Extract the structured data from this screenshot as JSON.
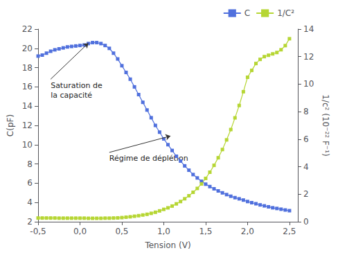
{
  "chart_data": {
    "type": "line",
    "xlabel": "Tension (V)",
    "ylabel": "C(pF)",
    "y2label": "1/c² (10⁻²² F⁻¹)",
    "xlim": [
      -0.5,
      2.6
    ],
    "xticks": [
      {
        "value": -0.5,
        "label": "-0,5"
      },
      {
        "value": 0.0,
        "label": "0,0"
      },
      {
        "value": 0.5,
        "label": "0,5"
      },
      {
        "value": 1.0,
        "label": "1,0"
      },
      {
        "value": 1.5,
        "label": "1,5"
      },
      {
        "value": 2.0,
        "label": "2,0"
      },
      {
        "value": 2.5,
        "label": "2,5"
      }
    ],
    "ylim": [
      2,
      22
    ],
    "yticks": [
      2,
      4,
      6,
      8,
      10,
      12,
      14,
      16,
      18,
      20,
      22
    ],
    "y2lim": [
      0,
      14
    ],
    "y2ticks": [
      0,
      2,
      4,
      6,
      8,
      10,
      12,
      14
    ],
    "grid": false,
    "legend": "upper right",
    "marker": "square",
    "x": [
      -0.5,
      -0.45,
      -0.4,
      -0.35,
      -0.3,
      -0.25,
      -0.2,
      -0.15,
      -0.1,
      -0.05,
      0.0,
      0.05,
      0.1,
      0.15,
      0.2,
      0.25,
      0.3,
      0.35,
      0.4,
      0.45,
      0.5,
      0.55,
      0.6,
      0.65,
      0.7,
      0.75,
      0.8,
      0.85,
      0.9,
      0.95,
      1.0,
      1.05,
      1.1,
      1.15,
      1.2,
      1.25,
      1.3,
      1.35,
      1.4,
      1.45,
      1.5,
      1.55,
      1.6,
      1.65,
      1.7,
      1.75,
      1.8,
      1.85,
      1.9,
      1.95,
      2.0,
      2.05,
      2.1,
      2.15,
      2.2,
      2.25,
      2.3,
      2.35,
      2.4,
      2.45,
      2.5
    ],
    "series": [
      {
        "name": "C",
        "values": [
          19.2,
          19.3,
          19.5,
          19.7,
          19.85,
          19.95,
          20.05,
          20.15,
          20.2,
          20.25,
          20.3,
          20.35,
          20.5,
          20.6,
          20.6,
          20.5,
          20.3,
          20.0,
          19.5,
          18.9,
          18.2,
          17.5,
          16.8,
          16.0,
          15.2,
          14.4,
          13.6,
          12.8,
          12.0,
          11.3,
          10.6,
          10.0,
          9.4,
          8.8,
          8.3,
          7.8,
          7.35,
          6.9,
          6.55,
          6.2,
          5.9,
          5.65,
          5.42,
          5.2,
          5.0,
          4.82,
          4.65,
          4.5,
          4.38,
          4.25,
          4.1,
          3.98,
          3.87,
          3.75,
          3.65,
          3.55,
          3.45,
          3.38,
          3.3,
          3.22,
          3.15
        ]
      },
      {
        "name": "1/C²",
        "axis": "y2",
        "values": [
          0.27,
          0.27,
          0.27,
          0.27,
          0.27,
          0.26,
          0.26,
          0.26,
          0.26,
          0.26,
          0.26,
          0.26,
          0.25,
          0.25,
          0.25,
          0.25,
          0.26,
          0.26,
          0.27,
          0.28,
          0.3,
          0.33,
          0.36,
          0.4,
          0.44,
          0.49,
          0.54,
          0.61,
          0.69,
          0.79,
          0.9,
          1.01,
          1.14,
          1.3,
          1.47,
          1.67,
          1.89,
          2.14,
          2.42,
          2.75,
          3.15,
          3.6,
          4.1,
          4.65,
          5.25,
          5.95,
          6.7,
          7.55,
          8.45,
          9.45,
          10.5,
          11.0,
          11.5,
          11.8,
          12.0,
          12.1,
          12.2,
          12.3,
          12.5,
          12.8,
          13.3
        ]
      }
    ],
    "annotations": [
      {
        "text": "Saturation de\nla capacité",
        "xy": [
          0.1,
          20.55
        ],
        "xytext": [
          -0.35,
          16.8
        ]
      },
      {
        "text": "Régime de déplétion",
        "xy": [
          1.08,
          10.9
        ],
        "xytext": [
          0.35,
          9.2
        ]
      }
    ]
  }
}
